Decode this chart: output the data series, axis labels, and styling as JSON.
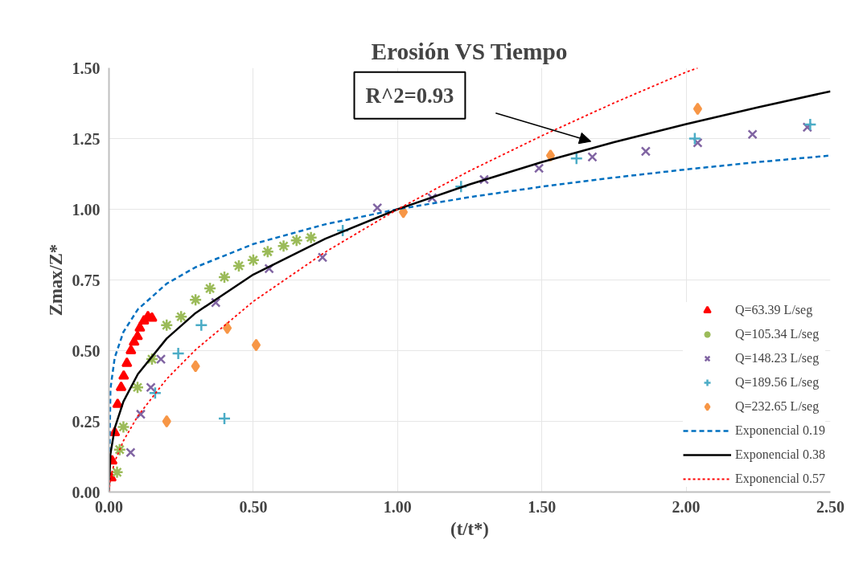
{
  "chart_data": {
    "type": "scatter",
    "title": "Erosión VS Tiempo",
    "xlabel": "(t/t*)",
    "ylabel": "Zmax/Z*",
    "xlim": [
      0,
      2.5
    ],
    "ylim": [
      0,
      1.5
    ],
    "xticks": [
      {
        "value": 0,
        "label": "0.00"
      },
      {
        "value": 0.5,
        "label": "0.50"
      },
      {
        "value": 1,
        "label": "1.00"
      },
      {
        "value": 1.5,
        "label": "1.50"
      },
      {
        "value": 2,
        "label": "2.00"
      },
      {
        "value": 2.5,
        "label": "2.50"
      }
    ],
    "yticks": [
      {
        "value": 0,
        "label": "0.00"
      },
      {
        "value": 0.25,
        "label": "0.25"
      },
      {
        "value": 0.5,
        "label": "0.50"
      },
      {
        "value": 0.75,
        "label": "0.75"
      },
      {
        "value": 1,
        "label": "1.00"
      },
      {
        "value": 1.25,
        "label": "1.25"
      },
      {
        "value": 1.5,
        "label": "1.50"
      }
    ],
    "grid": true,
    "legend": "right",
    "annotations": [
      "R^2=0.93"
    ],
    "series": [
      {
        "name": "Q=63.39 L/seg",
        "marker": "triangle",
        "color": "#ff0000",
        "x": [
          0.008,
          0.011,
          0.02,
          0.03,
          0.042,
          0.051,
          0.062,
          0.076,
          0.087,
          0.099,
          0.107,
          0.121,
          0.135,
          0.149
        ],
        "values": [
          0.05,
          0.11,
          0.21,
          0.31,
          0.37,
          0.41,
          0.455,
          0.5,
          0.53,
          0.55,
          0.58,
          0.605,
          0.62,
          0.615
        ]
      },
      {
        "name": "Q=105.34 L/seg",
        "marker": "cross",
        "color": "#9bbb59",
        "x": [
          0.028,
          0.037,
          0.05,
          0.099,
          0.149,
          0.2,
          0.25,
          0.3,
          0.35,
          0.4,
          0.45,
          0.5,
          0.55,
          0.605,
          0.65,
          0.7
        ],
        "values": [
          0.07,
          0.15,
          0.23,
          0.37,
          0.47,
          0.59,
          0.62,
          0.68,
          0.72,
          0.76,
          0.8,
          0.82,
          0.85,
          0.87,
          0.89,
          0.9
        ]
      },
      {
        "name": "Q=148.23 L/seg",
        "marker": "x",
        "color": "#8064a2",
        "x": [
          0.075,
          0.11,
          0.145,
          0.18,
          0.37,
          0.555,
          0.74,
          0.93,
          1.12,
          1.3,
          1.49,
          1.675,
          1.86,
          2.04,
          2.23,
          2.42
        ],
        "values": [
          0.14,
          0.275,
          0.37,
          0.47,
          0.67,
          0.79,
          0.83,
          1.005,
          1.04,
          1.105,
          1.145,
          1.185,
          1.205,
          1.235,
          1.265,
          1.29
        ]
      },
      {
        "name": "Q=189.56 L/seg",
        "marker": "plus",
        "color": "#4bacc6",
        "x": [
          0.16,
          0.24,
          0.32,
          0.4,
          0.81,
          1.22,
          1.62,
          2.03,
          2.43
        ],
        "values": [
          0.35,
          0.49,
          0.59,
          0.26,
          0.925,
          1.08,
          1.18,
          1.25,
          1.3
        ]
      },
      {
        "name": "Q=232.65 L/seg",
        "marker": "diamond",
        "color": "#f79646",
        "x": [
          0.2,
          0.3,
          0.41,
          0.51,
          1.02,
          1.53,
          2.04
        ],
        "values": [
          0.25,
          0.445,
          0.58,
          0.52,
          0.99,
          1.19,
          1.355
        ]
      },
      {
        "name": "Exponencial 0.19",
        "type": "line",
        "line_style": "dashed",
        "color": "#0070c0",
        "x": [
          0,
          0.005,
          0.02,
          0.05,
          0.1,
          0.2,
          0.3,
          0.5,
          0.75,
          1,
          1.25,
          1.5,
          1.75,
          2,
          2.25,
          2.5
        ],
        "values": [
          0,
          0.365,
          0.476,
          0.566,
          0.646,
          0.737,
          0.795,
          0.877,
          0.947,
          1,
          1.043,
          1.08,
          1.112,
          1.141,
          1.167,
          1.19
        ]
      },
      {
        "name": "Exponencial 0.38",
        "type": "line",
        "line_style": "solid",
        "color": "#000000",
        "x": [
          0,
          0.005,
          0.02,
          0.05,
          0.1,
          0.2,
          0.3,
          0.5,
          0.75,
          1,
          1.25,
          1.5,
          1.75,
          2,
          2.25,
          2.5
        ],
        "values": [
          0,
          0.134,
          0.226,
          0.32,
          0.417,
          0.543,
          0.633,
          0.769,
          0.896,
          1,
          1.088,
          1.167,
          1.237,
          1.301,
          1.361,
          1.417
        ]
      },
      {
        "name": "Exponencial 0.57",
        "type": "line",
        "line_style": "dotted",
        "color": "#ff0000",
        "x": [
          0,
          0.005,
          0.02,
          0.05,
          0.1,
          0.2,
          0.3,
          0.5,
          0.75,
          1,
          1.25,
          1.5,
          1.75,
          2,
          2.04
        ],
        "values": [
          0,
          0.049,
          0.108,
          0.181,
          0.269,
          0.4,
          0.503,
          0.674,
          0.849,
          1,
          1.136,
          1.26,
          1.376,
          1.485,
          1.5
        ]
      }
    ]
  }
}
